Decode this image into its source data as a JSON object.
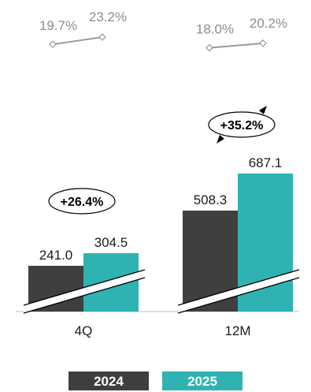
{
  "chart_data": {
    "type": "bar",
    "categories": [
      "4Q",
      "12M"
    ],
    "series": [
      {
        "name": "2024",
        "values": [
          241.0,
          508.3
        ],
        "labels": [
          "241.0",
          "508.3"
        ],
        "color": "#3f3f3f"
      },
      {
        "name": "2025",
        "values": [
          304.5,
          687.1
        ],
        "labels": [
          "304.5",
          "687.1"
        ],
        "color": "#2fb3b2"
      }
    ],
    "growth": [
      "+26.4%",
      "+35.2%"
    ],
    "margins": {
      "values": [
        [
          19.7,
          23.2
        ],
        [
          18.0,
          20.2
        ]
      ],
      "labels": [
        [
          "19.7%",
          "23.2%"
        ],
        [
          "18.0%",
          "20.2%"
        ]
      ],
      "color": "#999999"
    },
    "axis_break": true,
    "legend_position": "bottom"
  }
}
